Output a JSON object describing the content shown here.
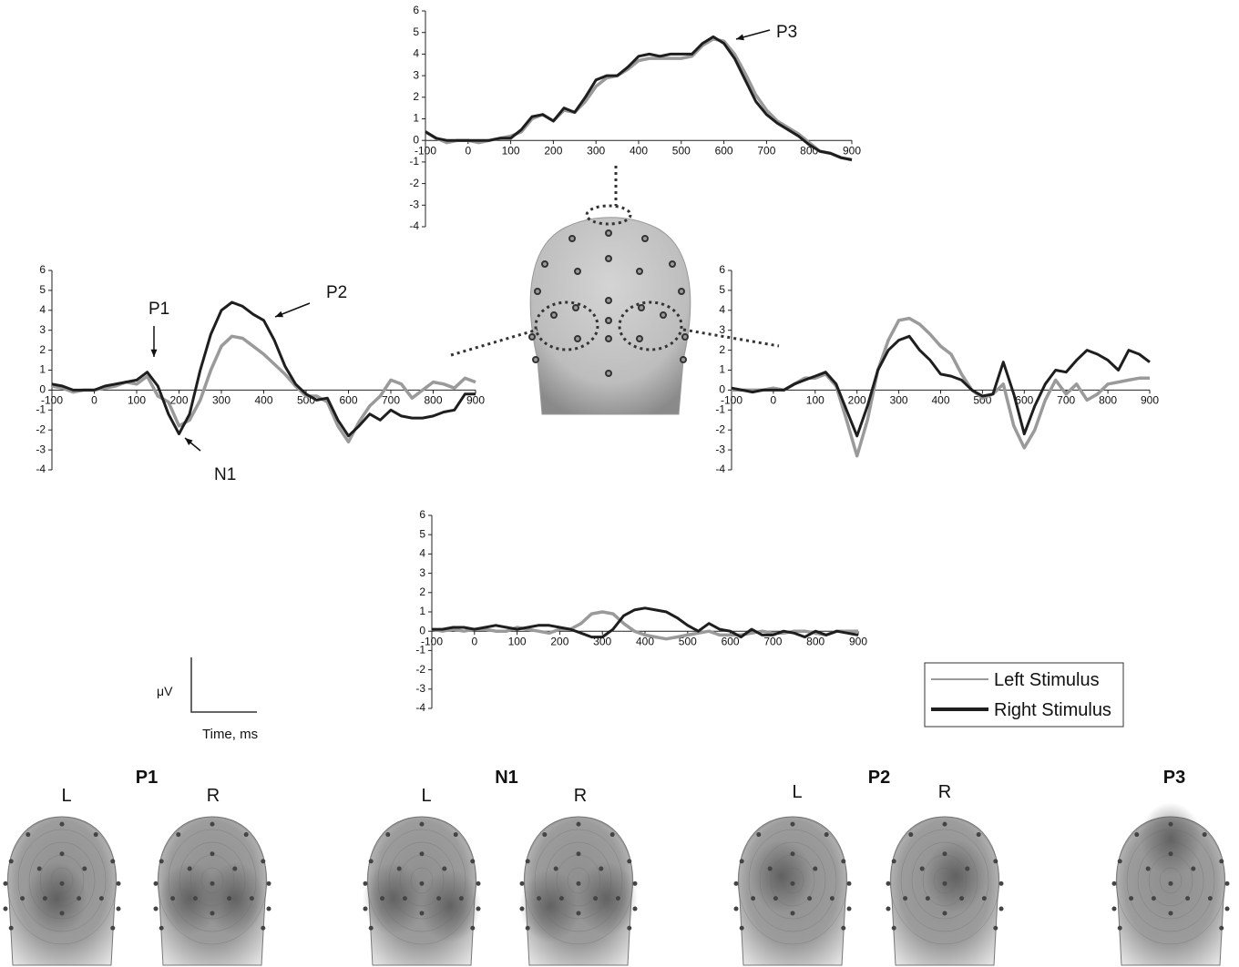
{
  "chart_data": [
    {
      "type": "line",
      "x": [
        -100,
        -75,
        -50,
        -25,
        0,
        25,
        50,
        75,
        100,
        125,
        150,
        175,
        200,
        225,
        250,
        275,
        300,
        325,
        350,
        375,
        400,
        425,
        450,
        475,
        500,
        525,
        550,
        575,
        600,
        625,
        650,
        675,
        700,
        725,
        750,
        775,
        800,
        825,
        850,
        875,
        900
      ],
      "series": [
        {
          "name": "Left Stimulus",
          "color": "#9a9a9a",
          "values": [
            0.4,
            0.1,
            -0.1,
            0,
            0,
            -0.1,
            0,
            0.1,
            0.2,
            0.4,
            1.0,
            1.2,
            0.9,
            1.4,
            1.3,
            1.8,
            2.5,
            2.9,
            3.0,
            3.3,
            3.7,
            3.8,
            3.8,
            3.8,
            3.8,
            3.9,
            4.4,
            4.7,
            4.6,
            4.0,
            3.1,
            2.1,
            1.4,
            0.9,
            0.6,
            0.3,
            -0.1,
            -0.5,
            -0.6,
            -0.8,
            -0.9
          ]
        },
        {
          "name": "Right Stimulus",
          "color": "#1e1e1e",
          "values": [
            0.4,
            0.1,
            0,
            0,
            0,
            0,
            0,
            0.1,
            0.1,
            0.5,
            1.1,
            1.2,
            0.9,
            1.5,
            1.3,
            2.0,
            2.8,
            3.0,
            3.0,
            3.4,
            3.9,
            4.0,
            3.9,
            4.0,
            4.0,
            4.0,
            4.5,
            4.8,
            4.5,
            3.8,
            2.8,
            1.8,
            1.2,
            0.8,
            0.5,
            0.2,
            -0.2,
            -0.5,
            -0.6,
            -0.8,
            -0.9
          ]
        }
      ],
      "xlim": [
        -100,
        900
      ],
      "xticks": [
        -100,
        0,
        100,
        200,
        300,
        400,
        500,
        600,
        700,
        800,
        900
      ],
      "ylim": [
        -4,
        6
      ],
      "yticks": [
        -4,
        -3,
        -2,
        -1,
        0,
        1,
        2,
        3,
        4,
        5,
        6
      ],
      "annotations": [
        "P3"
      ]
    },
    {
      "type": "line",
      "x": [
        -100,
        -75,
        -50,
        -25,
        0,
        25,
        50,
        75,
        100,
        125,
        150,
        175,
        200,
        225,
        250,
        275,
        300,
        325,
        350,
        375,
        400,
        425,
        450,
        475,
        500,
        525,
        550,
        575,
        600,
        625,
        650,
        675,
        700,
        725,
        750,
        775,
        800,
        825,
        850,
        875,
        900
      ],
      "series": [
        {
          "color": "#9a9a9a",
          "values": [
            0.2,
            0.1,
            -0.1,
            0,
            0,
            0.1,
            0.2,
            0.4,
            0.3,
            0.7,
            -0.3,
            -0.6,
            -1.8,
            -1.5,
            -0.5,
            1.0,
            2.2,
            2.7,
            2.6,
            2.2,
            1.8,
            1.3,
            0.8,
            0.2,
            -0.3,
            -0.3,
            -0.6,
            -1.8,
            -2.6,
            -1.6,
            -0.8,
            -0.3,
            0.5,
            0.3,
            -0.4,
            0.0,
            0.4,
            0.3,
            0.1,
            0.6,
            0.4
          ]
        },
        {
          "color": "#1e1e1e",
          "values": [
            0.3,
            0.2,
            0,
            0,
            0,
            0.2,
            0.3,
            0.4,
            0.5,
            0.9,
            0.2,
            -1.2,
            -2.2,
            -1.2,
            1.0,
            2.8,
            4.0,
            4.4,
            4.2,
            3.8,
            3.5,
            2.5,
            1.2,
            0.3,
            -0.2,
            -0.5,
            -0.4,
            -1.5,
            -2.3,
            -1.8,
            -1.2,
            -1.5,
            -1.0,
            -1.3,
            -1.4,
            -1.4,
            -1.3,
            -1.1,
            -1.0,
            -0.2,
            -0.2
          ]
        }
      ],
      "xlim": [
        -100,
        900
      ],
      "xticks": [
        -100,
        0,
        100,
        200,
        300,
        400,
        500,
        600,
        700,
        800,
        900
      ],
      "ylim": [
        -4,
        6
      ],
      "yticks": [
        -4,
        -3,
        -2,
        -1,
        0,
        1,
        2,
        3,
        4,
        5,
        6
      ],
      "annotations": [
        "P1",
        "P2",
        "N1"
      ]
    },
    {
      "type": "line",
      "x": [
        -100,
        -75,
        -50,
        -25,
        0,
        25,
        50,
        75,
        100,
        125,
        150,
        175,
        200,
        225,
        250,
        275,
        300,
        325,
        350,
        375,
        400,
        425,
        450,
        475,
        500,
        525,
        550,
        575,
        600,
        625,
        650,
        675,
        700,
        725,
        750,
        775,
        800,
        825,
        850,
        875,
        900
      ],
      "series": [
        {
          "color": "#9a9a9a",
          "values": [
            0,
            0,
            0,
            0,
            0.1,
            0,
            0.3,
            0.6,
            0.6,
            0.8,
            0.2,
            -1.5,
            -3.3,
            -1.5,
            1.0,
            2.5,
            3.5,
            3.6,
            3.3,
            2.8,
            2.2,
            1.8,
            0.8,
            0.0,
            -0.4,
            -0.2,
            0.3,
            -1.8,
            -2.9,
            -2.0,
            -0.5,
            0.5,
            -0.2,
            0.3,
            -0.5,
            -0.2,
            0.3,
            0.4,
            0.5,
            0.6,
            0.6
          ]
        },
        {
          "color": "#1e1e1e",
          "values": [
            0.1,
            0,
            -0.1,
            0,
            0,
            0,
            0.3,
            0.5,
            0.7,
            0.9,
            0.3,
            -1.0,
            -2.3,
            -0.8,
            1.0,
            2.0,
            2.5,
            2.7,
            2.0,
            1.5,
            0.8,
            0.7,
            0.5,
            0,
            -0.3,
            -0.2,
            1.4,
            -0.2,
            -2.2,
            -0.8,
            0.3,
            1.0,
            0.9,
            1.5,
            2.0,
            1.8,
            1.5,
            1.0,
            2.0,
            1.8,
            1.4
          ]
        }
      ],
      "xlim": [
        -100,
        900
      ],
      "xticks": [
        -100,
        0,
        100,
        200,
        300,
        400,
        500,
        600,
        700,
        800,
        900
      ],
      "ylim": [
        -4,
        6
      ],
      "yticks": [
        -4,
        -3,
        -2,
        -1,
        0,
        1,
        2,
        3,
        4,
        5,
        6
      ]
    },
    {
      "type": "line",
      "x": [
        -100,
        -75,
        -50,
        -25,
        0,
        25,
        50,
        75,
        100,
        125,
        150,
        175,
        200,
        225,
        250,
        275,
        300,
        325,
        350,
        375,
        400,
        425,
        450,
        475,
        500,
        525,
        550,
        575,
        600,
        625,
        650,
        675,
        700,
        725,
        750,
        775,
        800,
        825,
        850,
        875,
        900
      ],
      "series": [
        {
          "color": "#9a9a9a",
          "values": [
            0.1,
            0.0,
            0.1,
            0.0,
            0.1,
            0.1,
            0.0,
            0.0,
            0.2,
            0.1,
            0.0,
            -0.1,
            0.1,
            0.1,
            0.4,
            0.9,
            1.0,
            0.9,
            0.4,
            0.0,
            -0.2,
            -0.3,
            -0.4,
            -0.3,
            -0.2,
            -0.1,
            0.0,
            -0.2,
            -0.2,
            -0.2,
            -0.1,
            0.0,
            -0.1,
            -0.1,
            0.0,
            0.0,
            -0.1,
            -0.2,
            0.0,
            0.0,
            0.0
          ]
        },
        {
          "color": "#1e1e1e",
          "values": [
            0.1,
            0.1,
            0.2,
            0.2,
            0.1,
            0.2,
            0.3,
            0.2,
            0.1,
            0.2,
            0.3,
            0.3,
            0.2,
            0.1,
            -0.1,
            -0.3,
            -0.3,
            0.1,
            0.8,
            1.1,
            1.2,
            1.1,
            1.0,
            0.7,
            0.3,
            0.0,
            0.4,
            0.1,
            0.0,
            -0.3,
            0.1,
            -0.2,
            -0.2,
            0.0,
            -0.1,
            -0.3,
            0.0,
            -0.2,
            0.0,
            -0.1,
            -0.2
          ]
        }
      ],
      "xlim": [
        -100,
        900
      ],
      "xticks": [
        -100,
        0,
        100,
        200,
        300,
        400,
        500,
        600,
        700,
        800,
        900
      ],
      "ylim": [
        -4,
        6
      ],
      "yticks": [
        -4,
        -3,
        -2,
        -1,
        0,
        1,
        2,
        3,
        4,
        5,
        6
      ]
    }
  ],
  "scale_bar": {
    "y_label": "μV",
    "x_label": "Time, ms"
  },
  "topomaps": [
    {
      "title": "P1",
      "labels": [
        "L",
        "R"
      ]
    },
    {
      "title": "N1",
      "labels": [
        "L",
        "R"
      ]
    },
    {
      "title": "P2",
      "labels": [
        "L",
        "R"
      ]
    },
    {
      "title": "P3"
    }
  ]
}
